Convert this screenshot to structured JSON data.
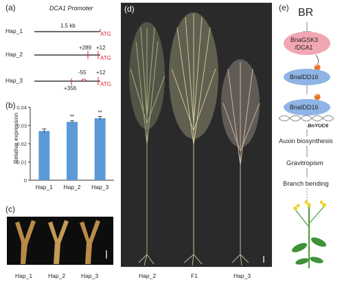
{
  "panels": {
    "a": {
      "label": "(a)",
      "title": "DCA1 Promoter",
      "length_label": "1.5 kb",
      "rows": [
        {
          "name": "Hap_1",
          "atg": "ATG",
          "marks": []
        },
        {
          "name": "Hap_2",
          "atg": "ATG",
          "marks": [
            "+289",
            "+12"
          ]
        },
        {
          "name": "Hap_3",
          "atg": "ATG",
          "marks": [
            "-55",
            "+12",
            "+356"
          ]
        }
      ]
    },
    "b": {
      "label": "(b)",
      "sig": [
        "",
        "**",
        "**"
      ]
    },
    "c": {
      "label": "(c)",
      "labels": [
        "Hap_1",
        "Hap_2",
        "Hap_3"
      ]
    },
    "d": {
      "label": "(d)",
      "labels": [
        "Hap_2",
        "F1",
        "Hap_3"
      ]
    },
    "e": {
      "label": "(e)",
      "br": "BR",
      "gsk3_line1": "BnaGSK3",
      "gsk3_line2": "/DCA1",
      "p": "P",
      "idd16_a": "BnaIDD16",
      "idd16_b": "BnaIDD16",
      "yuc6": "BnYUC6",
      "steps": [
        "Auxin biosynthesis",
        "Gravitropism",
        "Branch bending"
      ]
    }
  },
  "chart_data": {
    "type": "bar",
    "categories": [
      "Hap_1",
      "Hap_2",
      "Hap_3"
    ],
    "values": [
      0.027,
      0.032,
      0.034
    ],
    "errors": [
      0.0012,
      0.0006,
      0.0009
    ],
    "ylabel": "Relative expression",
    "yticks": [
      "0",
      "0.01",
      "0.02",
      "0.03",
      "0.04"
    ],
    "ylim": [
      0,
      0.04
    ],
    "bar_color": "#5b9bd5",
    "grid": false
  },
  "colors": {
    "accent_red": "#e0202a",
    "bar_blue": "#5b9bd5",
    "gsk_pink": "#f1a7b3",
    "idd_blue": "#8fb4e6",
    "p_orange": "#e8752e",
    "plant_bg": "#2a2a2a",
    "stem_dark_bg": "#111111"
  }
}
